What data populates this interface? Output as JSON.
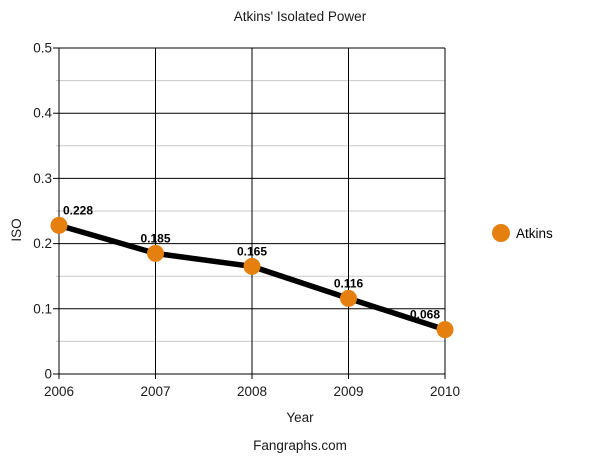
{
  "chart_data": {
    "type": "line",
    "title": "Atkins' Isolated Power",
    "xlabel": "Year",
    "ylabel": "ISO",
    "x": [
      2006,
      2007,
      2008,
      2009,
      2010
    ],
    "series": [
      {
        "name": "Atkins",
        "values": [
          0.228,
          0.185,
          0.165,
          0.116,
          0.068
        ]
      }
    ],
    "point_labels": [
      "0.228",
      "0.185",
      "0.165",
      "0.116",
      "0.068"
    ],
    "ylim": [
      0,
      0.5
    ],
    "y_major_step": 0.1,
    "y_minor_step": 0.05,
    "yticks": [
      "0",
      "0.1",
      "0.2",
      "0.3",
      "0.4",
      "0.5"
    ],
    "grid": true,
    "legend_position": "right",
    "colors": {
      "marker": "#E5800E",
      "line": "#000000",
      "major_grid": "#000000",
      "minor_grid": "#C9C9C9",
      "text": "#1a1a1a"
    }
  },
  "footer": {
    "text": "Fangraphs.com"
  }
}
